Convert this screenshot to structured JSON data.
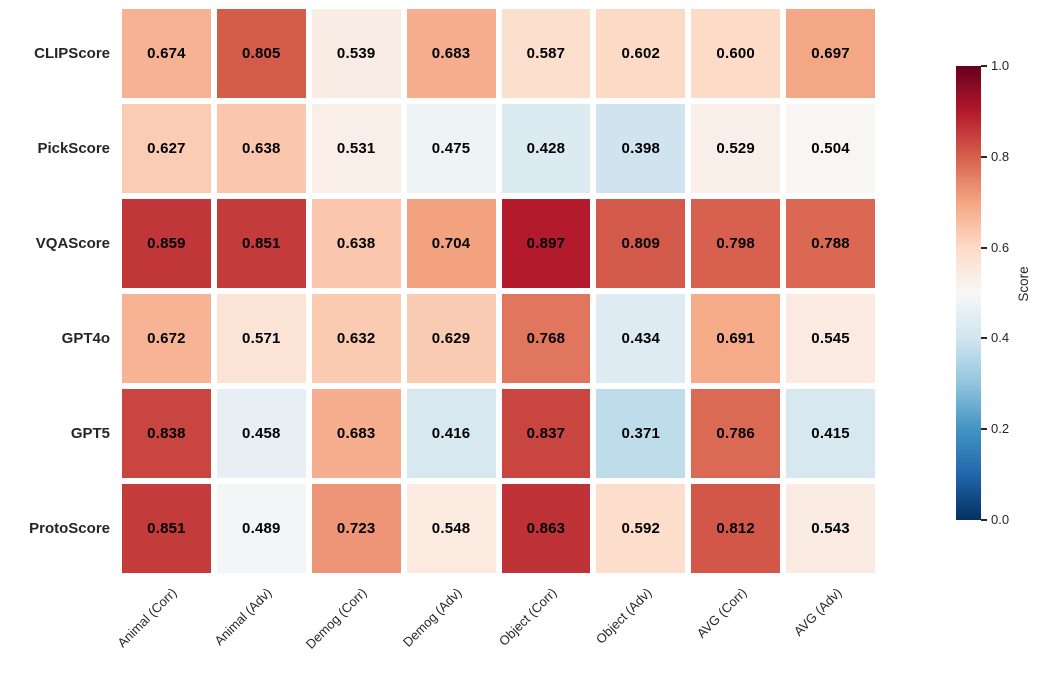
{
  "chart_data": {
    "type": "heatmap",
    "title": "",
    "rows": [
      "CLIPScore",
      "PickScore",
      "VQAScore",
      "GPT4o",
      "GPT5",
      "ProtoScore"
    ],
    "columns": [
      "Animal (Corr)",
      "Animal (Adv)",
      "Demog (Corr)",
      "Demog (Adv)",
      "Object (Corr)",
      "Object (Adv)",
      "AVG (Corr)",
      "AVG (Adv)"
    ],
    "values": [
      [
        0.674,
        0.805,
        0.539,
        0.683,
        0.587,
        0.602,
        0.6,
        0.697
      ],
      [
        0.627,
        0.638,
        0.531,
        0.475,
        0.428,
        0.398,
        0.529,
        0.504
      ],
      [
        0.859,
        0.851,
        0.638,
        0.704,
        0.897,
        0.809,
        0.798,
        0.788
      ],
      [
        0.672,
        0.571,
        0.632,
        0.629,
        0.768,
        0.434,
        0.691,
        0.545
      ],
      [
        0.838,
        0.458,
        0.683,
        0.416,
        0.837,
        0.371,
        0.786,
        0.415
      ],
      [
        0.851,
        0.489,
        0.723,
        0.548,
        0.863,
        0.592,
        0.812,
        0.543
      ]
    ],
    "value_decimals": 3,
    "vmin": 0.0,
    "vmax": 1.0,
    "colormap": "RdBu_r",
    "colormap_stops": [
      "#053061",
      "#2166ac",
      "#4393c3",
      "#92c5de",
      "#d1e5f0",
      "#f7f7f7",
      "#fddbc7",
      "#f4a582",
      "#d6604d",
      "#b2182b",
      "#67001f"
    ],
    "grid_gap_color": "#ffffff",
    "annotation_color": "#000000",
    "axis_label_color": "#262626",
    "colorbar": {
      "label": "Score",
      "ticks": [
        {
          "value": 1.0,
          "label": "1.0"
        },
        {
          "value": 0.8,
          "label": "0.8"
        },
        {
          "value": 0.6,
          "label": "0.6"
        },
        {
          "value": 0.4,
          "label": "0.4"
        },
        {
          "value": 0.2,
          "label": "0.2"
        },
        {
          "value": 0.0,
          "label": "0.0"
        }
      ]
    },
    "legend_position": "right",
    "xlabel": "",
    "ylabel": ""
  }
}
